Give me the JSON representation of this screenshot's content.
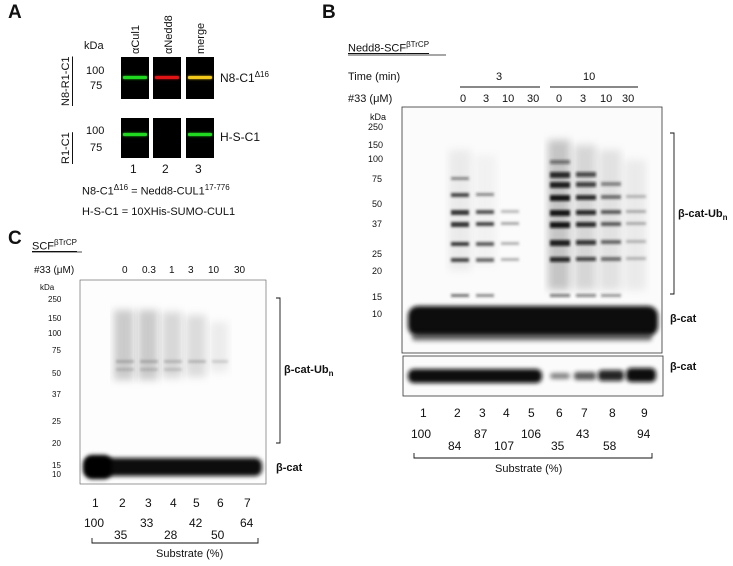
{
  "panelA": {
    "letter": "A",
    "kda": "kDa",
    "col_headers": [
      "αCul1",
      "αNedd8",
      "merge"
    ],
    "row1_label": "N8-R1-C1",
    "row2_label": "R1-C1",
    "mw_row1": [
      "100",
      "75"
    ],
    "mw_row2": [
      "100",
      "75"
    ],
    "band1_label": "N8-C1",
    "band1_sup": "Δ16",
    "band2_label": "H-S-C1",
    "lanes": [
      "1",
      "2",
      "3"
    ],
    "def1_a": "N8-C1",
    "def1_sup1": "Δ16",
    "def1_b": " = Nedd8-CUL1",
    "def1_sup2": "17-776",
    "def2": "H-S-C1 = 10XHis-SUMO-CUL1",
    "colors": {
      "green": "#1fd81f",
      "red": "#e01414",
      "yellow": "#f2c81a"
    }
  },
  "panelB": {
    "letter": "B",
    "title_main": "Nedd8-SCF",
    "title_sup": "βTrCP",
    "time_label": "Time (min)",
    "time_groups": [
      "3",
      "10"
    ],
    "conc_label": "#33 (μM)",
    "conc": [
      "0",
      "3",
      "10",
      "30",
      "0",
      "3",
      "10",
      "30"
    ],
    "kda": "kDa",
    "mw": [
      "250",
      "150",
      "100",
      "75",
      "50",
      "37",
      "25",
      "20",
      "15",
      "10"
    ],
    "ubn_label": "β-cat-Ub",
    "ubn_sub": "n",
    "cat_label": "β-cat",
    "cat2_label": "β-cat",
    "lanes": [
      "1",
      "2",
      "3",
      "4",
      "5",
      "6",
      "7",
      "8",
      "9"
    ],
    "substrate_top": [
      "100",
      "87",
      "106",
      "43",
      "94"
    ],
    "substrate_bottom": [
      "84",
      "107",
      "35",
      "58"
    ],
    "substrate_label": "Substrate (%)"
  },
  "panelC": {
    "letter": "C",
    "title_main": "SCF",
    "title_sup": "βTrCP",
    "conc_label": "#33 (μM)",
    "conc": [
      "0",
      "0.3",
      "1",
      "3",
      "10",
      "30"
    ],
    "kda": "kDa",
    "mw": [
      "250",
      "150",
      "100",
      "75",
      "50",
      "37",
      "25",
      "20",
      "15",
      "10"
    ],
    "ubn_label": "β-cat-Ub",
    "ubn_sub": "n",
    "cat_label": "β-cat",
    "lanes": [
      "1",
      "2",
      "3",
      "4",
      "5",
      "6",
      "7"
    ],
    "substrate_top": [
      "100",
      "33",
      "42",
      "64"
    ],
    "substrate_bottom": [
      "35",
      "28",
      "50"
    ],
    "substrate_label": "Substrate (%)"
  }
}
